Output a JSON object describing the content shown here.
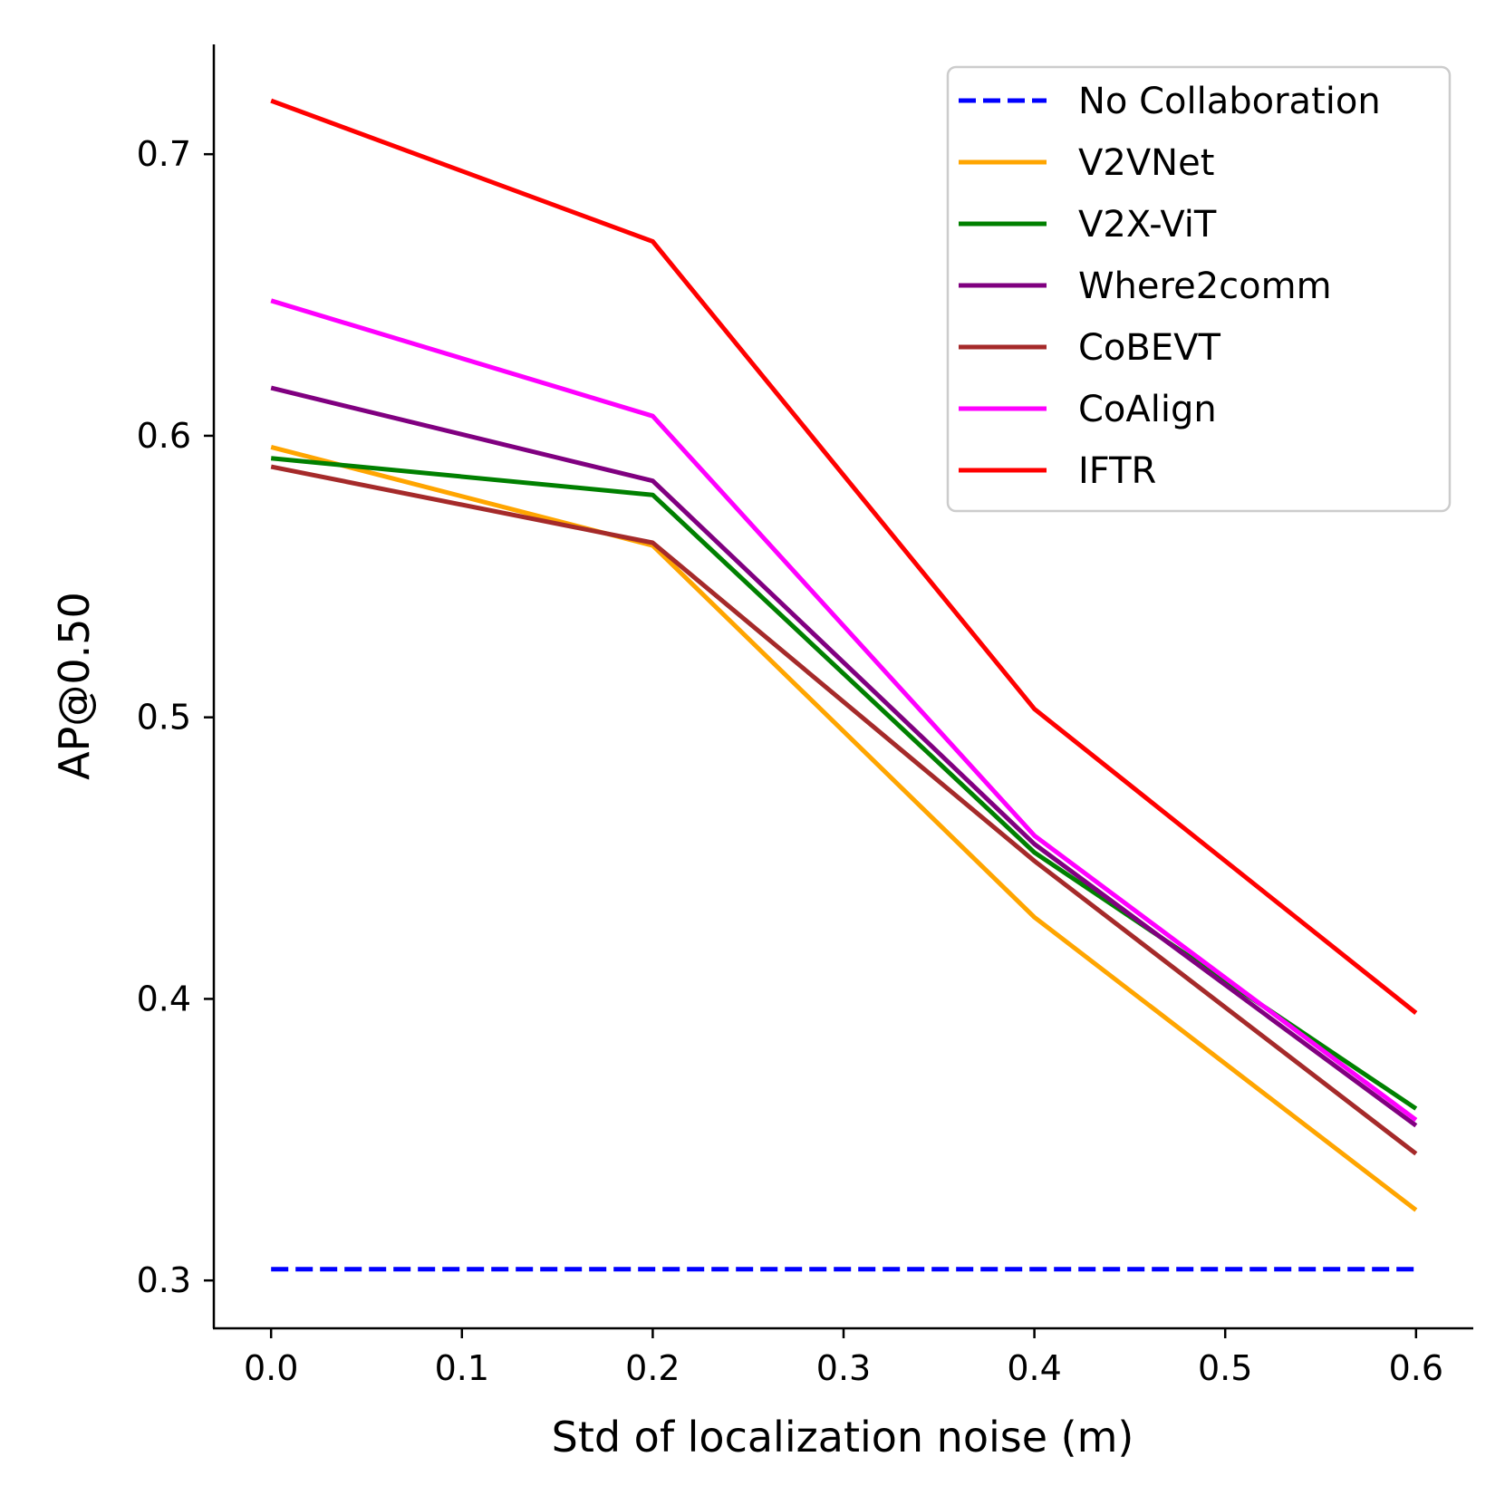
{
  "chart_data": {
    "type": "line",
    "title": "",
    "xlabel": "Std of localization noise (m)",
    "ylabel": "AP@0.50",
    "xlim": [
      -0.03,
      0.63
    ],
    "ylim": [
      0.283,
      0.739
    ],
    "xticks": [
      0.0,
      0.1,
      0.2,
      0.3,
      0.4,
      0.5,
      0.6
    ],
    "xtick_labels": [
      "0.0",
      "0.1",
      "0.2",
      "0.3",
      "0.4",
      "0.5",
      "0.6"
    ],
    "yticks": [
      0.3,
      0.4,
      0.5,
      0.6,
      0.7
    ],
    "ytick_labels": [
      "0.3",
      "0.4",
      "0.5",
      "0.6",
      "0.7"
    ],
    "grid": false,
    "legend_position": "top-right",
    "x": [
      0.0,
      0.2,
      0.4,
      0.6
    ],
    "series": [
      {
        "name": "No Collaboration",
        "color": "#0000ff",
        "dashed": true,
        "values": [
          0.304,
          0.304,
          0.304,
          0.304
        ]
      },
      {
        "name": "V2VNet",
        "color": "#ffa500",
        "dashed": false,
        "values": [
          0.596,
          0.561,
          0.429,
          0.325
        ]
      },
      {
        "name": "V2X-ViT",
        "color": "#008000",
        "dashed": false,
        "values": [
          0.592,
          0.579,
          0.452,
          0.361
        ]
      },
      {
        "name": "Where2comm",
        "color": "#800080",
        "dashed": false,
        "values": [
          0.617,
          0.584,
          0.455,
          0.355
        ]
      },
      {
        "name": "CoBEVT",
        "color": "#a52a2a",
        "dashed": false,
        "values": [
          0.589,
          0.562,
          0.449,
          0.345
        ]
      },
      {
        "name": "CoAlign",
        "color": "#ff00ff",
        "dashed": false,
        "values": [
          0.648,
          0.607,
          0.458,
          0.357
        ]
      },
      {
        "name": "IFTR",
        "color": "#ff0000",
        "dashed": false,
        "values": [
          0.719,
          0.669,
          0.503,
          0.395
        ]
      }
    ]
  }
}
